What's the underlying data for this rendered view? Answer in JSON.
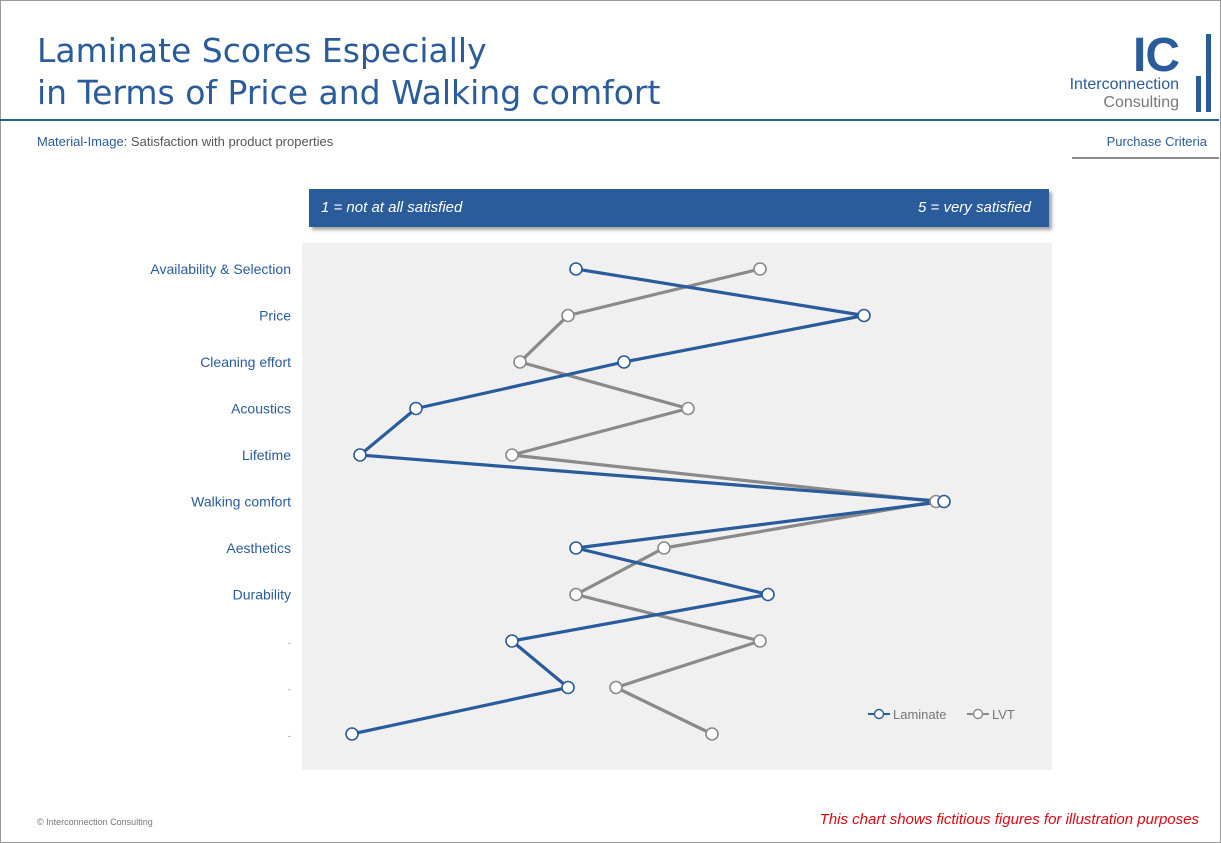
{
  "header": {
    "title_line1": "Laminate Scores Especially",
    "title_line2": "in Terms of Price and Walking comfort",
    "subtitle_bold": "Material-Image",
    "subtitle_rest": ": Satisfaction with product properties",
    "section": "Purchase Criteria"
  },
  "logo": {
    "mark": "IC",
    "line1": "Interconnection",
    "line2": "Consulting"
  },
  "scale": {
    "low_label": "1 = not at all satisfied",
    "high_label": "5 = very satisfied"
  },
  "footer": {
    "copyright": "© Interconnection Consulting",
    "disclaimer": "This chart shows fictitious figures for illustration purposes"
  },
  "colors": {
    "laminate": "#2a5b9b",
    "lvt": "#8a8a8a",
    "plot_bg": "#f0f0f0",
    "accent": "#2a5b9b"
  },
  "chart_data": {
    "type": "line",
    "title": "",
    "xlabel": "",
    "ylabel": "",
    "xlim": [
      1,
      5
    ],
    "categories": [
      "Availability & Selection",
      "Price",
      "Cleaning effort",
      "Acoustics",
      "Lifetime",
      "Walking comfort",
      "Aesthetics",
      "Durability",
      "-",
      "-",
      "-"
    ],
    "legend_position": "bottom-right",
    "grid": false,
    "series": [
      {
        "name": "Laminate",
        "points": [
          {
            "x": 2.65,
            "y": 0
          },
          {
            "x": 4.45,
            "y": 1
          },
          {
            "x": 2.95,
            "y": 2
          },
          {
            "x": 1.65,
            "y": 3
          },
          {
            "x": 1.3,
            "y": 4
          },
          {
            "x": 4.95,
            "y": 5
          },
          {
            "x": 2.65,
            "y": 6
          },
          {
            "x": 3.85,
            "y": 7
          },
          {
            "x": 2.25,
            "y": 8
          },
          {
            "x": 2.6,
            "y": 9
          },
          {
            "x": 1.25,
            "y": 10
          }
        ]
      },
      {
        "name": "LVT",
        "points": [
          {
            "x": 3.8,
            "y": 0
          },
          {
            "x": 2.6,
            "y": 1
          },
          {
            "x": 2.3,
            "y": 2
          },
          {
            "x": 3.35,
            "y": 3
          },
          {
            "x": 2.25,
            "y": 4
          },
          {
            "x": 4.9,
            "y": 5
          },
          {
            "x": 3.2,
            "y": 6
          },
          {
            "x": 2.65,
            "y": 7
          },
          {
            "x": 3.8,
            "y": 8
          },
          {
            "x": 2.9,
            "y": 9
          },
          {
            "x": 3.5,
            "y": 10
          }
        ]
      }
    ]
  }
}
